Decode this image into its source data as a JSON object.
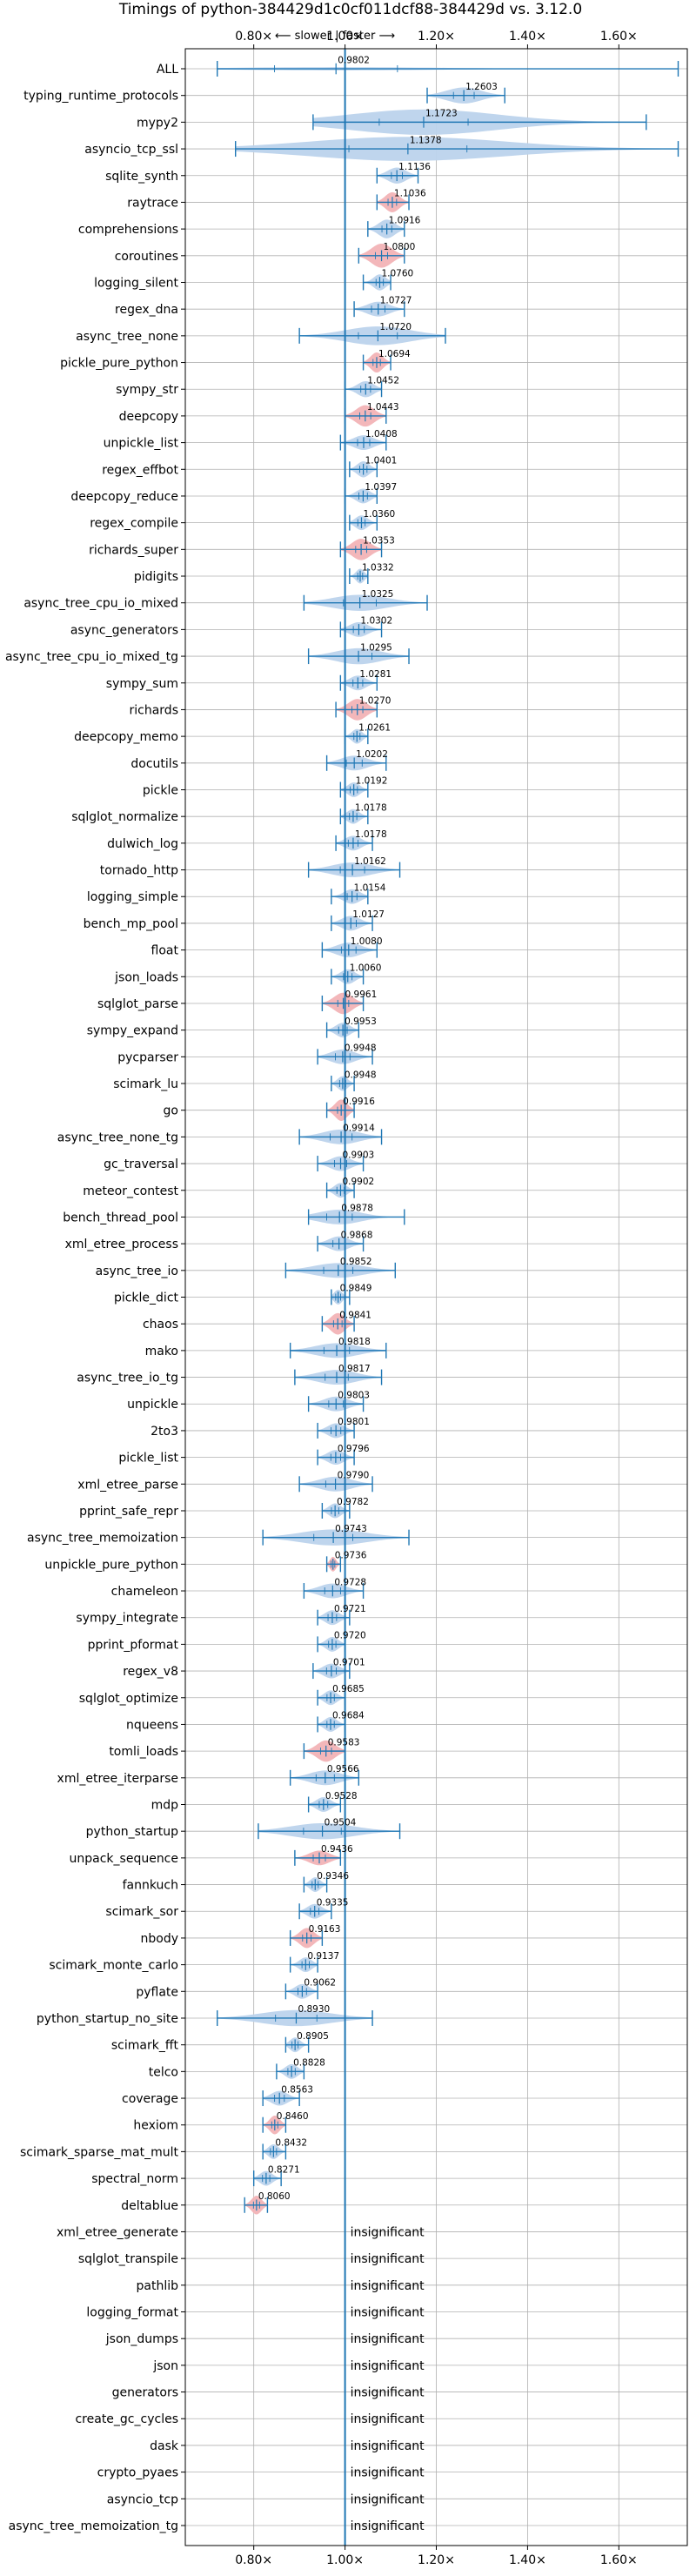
{
  "chart_data": {
    "type": "violin",
    "title": "Timings of python-384429d1c0cf011dcf88-384429d vs. 3.12.0",
    "subtitle": "⟵ slower | faster ⟶",
    "xlim": [
      0.65,
      1.75
    ],
    "xticks": [
      0.8,
      1.0,
      1.2,
      1.4,
      1.6
    ],
    "xtick_labels": [
      "0.80×",
      "1.00×",
      "1.20×",
      "1.40×",
      "1.60×"
    ],
    "reference_line": 1.0,
    "grid": true,
    "insignificant_label": "insignificant",
    "benchmarks": [
      {
        "name": "ALL",
        "value": 0.9802,
        "label": "0.9802",
        "min": 0.72,
        "max": 1.73,
        "width": 0.12,
        "color": "blue"
      },
      {
        "name": "typing_runtime_protocols",
        "value": 1.2603,
        "label": "1.2603",
        "min": 1.18,
        "max": 1.35,
        "width": 0.6,
        "color": "blue"
      },
      {
        "name": "mypy2",
        "value": 1.1723,
        "label": "1.1723",
        "min": 0.93,
        "max": 1.66,
        "width": 0.95,
        "color": "blue"
      },
      {
        "name": "asyncio_tcp_ssl",
        "value": 1.1378,
        "label": "1.1378",
        "min": 0.76,
        "max": 1.73,
        "width": 0.9,
        "color": "blue"
      },
      {
        "name": "sqlite_synth",
        "value": 1.1136,
        "label": "1.1136",
        "min": 1.07,
        "max": 1.16,
        "width": 0.6,
        "color": "blue"
      },
      {
        "name": "raytrace",
        "value": 1.1036,
        "label": "1.1036",
        "min": 1.07,
        "max": 1.14,
        "width": 0.75,
        "color": "red"
      },
      {
        "name": "comprehensions",
        "value": 1.0916,
        "label": "1.0916",
        "min": 1.05,
        "max": 1.13,
        "width": 0.7,
        "color": "blue"
      },
      {
        "name": "coroutines",
        "value": 1.08,
        "label": "1.0800",
        "min": 1.03,
        "max": 1.13,
        "width": 0.9,
        "color": "red"
      },
      {
        "name": "logging_silent",
        "value": 1.076,
        "label": "1.0760",
        "min": 1.04,
        "max": 1.1,
        "width": 0.6,
        "color": "blue"
      },
      {
        "name": "regex_dna",
        "value": 1.0727,
        "label": "1.0727",
        "min": 1.02,
        "max": 1.13,
        "width": 0.55,
        "color": "blue"
      },
      {
        "name": "async_tree_none",
        "value": 1.072,
        "label": "1.0720",
        "min": 0.9,
        "max": 1.22,
        "width": 0.7,
        "color": "blue"
      },
      {
        "name": "pickle_pure_python",
        "value": 1.0694,
        "label": "1.0694",
        "min": 1.04,
        "max": 1.1,
        "width": 0.75,
        "color": "red"
      },
      {
        "name": "sympy_str",
        "value": 1.0452,
        "label": "1.0452",
        "min": 1.0,
        "max": 1.08,
        "width": 0.6,
        "color": "blue"
      },
      {
        "name": "deepcopy",
        "value": 1.0443,
        "label": "1.0443",
        "min": 1.0,
        "max": 1.09,
        "width": 0.8,
        "color": "red"
      },
      {
        "name": "unpickle_list",
        "value": 1.0408,
        "label": "1.0408",
        "min": 0.99,
        "max": 1.09,
        "width": 0.55,
        "color": "blue"
      },
      {
        "name": "regex_effbot",
        "value": 1.0401,
        "label": "1.0401",
        "min": 1.01,
        "max": 1.07,
        "width": 0.6,
        "color": "blue"
      },
      {
        "name": "deepcopy_reduce",
        "value": 1.0397,
        "label": "1.0397",
        "min": 1.0,
        "max": 1.07,
        "width": 0.55,
        "color": "blue"
      },
      {
        "name": "regex_compile",
        "value": 1.036,
        "label": "1.0360",
        "min": 1.01,
        "max": 1.07,
        "width": 0.55,
        "color": "blue"
      },
      {
        "name": "richards_super",
        "value": 1.0353,
        "label": "1.0353",
        "min": 0.99,
        "max": 1.08,
        "width": 0.8,
        "color": "red"
      },
      {
        "name": "pidigits",
        "value": 1.0332,
        "label": "1.0332",
        "min": 1.01,
        "max": 1.05,
        "width": 0.55,
        "color": "blue"
      },
      {
        "name": "async_tree_cpu_io_mixed",
        "value": 1.0325,
        "label": "1.0325",
        "min": 0.91,
        "max": 1.18,
        "width": 0.6,
        "color": "blue"
      },
      {
        "name": "async_generators",
        "value": 1.0302,
        "label": "1.0302",
        "min": 0.99,
        "max": 1.08,
        "width": 0.55,
        "color": "blue"
      },
      {
        "name": "async_tree_cpu_io_mixed_tg",
        "value": 1.0295,
        "label": "1.0295",
        "min": 0.92,
        "max": 1.14,
        "width": 0.6,
        "color": "blue"
      },
      {
        "name": "sympy_sum",
        "value": 1.0281,
        "label": "1.0281",
        "min": 0.99,
        "max": 1.07,
        "width": 0.55,
        "color": "blue"
      },
      {
        "name": "richards",
        "value": 1.027,
        "label": "1.0270",
        "min": 0.98,
        "max": 1.07,
        "width": 0.8,
        "color": "red"
      },
      {
        "name": "deepcopy_memo",
        "value": 1.0261,
        "label": "1.0261",
        "min": 1.0,
        "max": 1.05,
        "width": 0.55,
        "color": "blue"
      },
      {
        "name": "docutils",
        "value": 1.0202,
        "label": "1.0202",
        "min": 0.96,
        "max": 1.09,
        "width": 0.55,
        "color": "blue"
      },
      {
        "name": "pickle",
        "value": 1.0192,
        "label": "1.0192",
        "min": 0.99,
        "max": 1.05,
        "width": 0.55,
        "color": "blue"
      },
      {
        "name": "sqlglot_normalize",
        "value": 1.0178,
        "label": "1.0178",
        "min": 0.99,
        "max": 1.05,
        "width": 0.55,
        "color": "blue"
      },
      {
        "name": "dulwich_log",
        "value": 1.0178,
        "label": "1.0178",
        "min": 0.98,
        "max": 1.06,
        "width": 0.55,
        "color": "blue"
      },
      {
        "name": "tornado_http",
        "value": 1.0162,
        "label": "1.0162",
        "min": 0.92,
        "max": 1.12,
        "width": 0.55,
        "color": "blue"
      },
      {
        "name": "logging_simple",
        "value": 1.0154,
        "label": "1.0154",
        "min": 0.97,
        "max": 1.05,
        "width": 0.55,
        "color": "blue"
      },
      {
        "name": "bench_mp_pool",
        "value": 1.0127,
        "label": "1.0127",
        "min": 0.97,
        "max": 1.06,
        "width": 0.55,
        "color": "blue"
      },
      {
        "name": "float",
        "value": 1.008,
        "label": "1.0080",
        "min": 0.95,
        "max": 1.07,
        "width": 0.55,
        "color": "blue"
      },
      {
        "name": "json_loads",
        "value": 1.006,
        "label": "1.0060",
        "min": 0.97,
        "max": 1.04,
        "width": 0.55,
        "color": "blue"
      },
      {
        "name": "sqlglot_parse",
        "value": 0.9961,
        "label": "0.9961",
        "min": 0.95,
        "max": 1.04,
        "width": 0.8,
        "color": "red"
      },
      {
        "name": "sympy_expand",
        "value": 0.9953,
        "label": "0.9953",
        "min": 0.96,
        "max": 1.03,
        "width": 0.55,
        "color": "blue"
      },
      {
        "name": "pycparser",
        "value": 0.9948,
        "label": "0.9948",
        "min": 0.94,
        "max": 1.06,
        "width": 0.55,
        "color": "blue"
      },
      {
        "name": "scimark_lu",
        "value": 0.9948,
        "label": "0.9948",
        "min": 0.97,
        "max": 1.02,
        "width": 0.55,
        "color": "blue"
      },
      {
        "name": "go",
        "value": 0.9916,
        "label": "0.9916",
        "min": 0.96,
        "max": 1.02,
        "width": 0.8,
        "color": "red"
      },
      {
        "name": "async_tree_none_tg",
        "value": 0.9914,
        "label": "0.9914",
        "min": 0.9,
        "max": 1.08,
        "width": 0.55,
        "color": "blue"
      },
      {
        "name": "gc_traversal",
        "value": 0.9903,
        "label": "0.9903",
        "min": 0.94,
        "max": 1.04,
        "width": 0.55,
        "color": "blue"
      },
      {
        "name": "meteor_contest",
        "value": 0.9902,
        "label": "0.9902",
        "min": 0.96,
        "max": 1.02,
        "width": 0.55,
        "color": "blue"
      },
      {
        "name": "bench_thread_pool",
        "value": 0.9878,
        "label": "0.9878",
        "min": 0.92,
        "max": 1.13,
        "width": 0.55,
        "color": "blue"
      },
      {
        "name": "xml_etree_process",
        "value": 0.9868,
        "label": "0.9868",
        "min": 0.94,
        "max": 1.04,
        "width": 0.55,
        "color": "blue"
      },
      {
        "name": "async_tree_io",
        "value": 0.9852,
        "label": "0.9852",
        "min": 0.87,
        "max": 1.11,
        "width": 0.55,
        "color": "blue"
      },
      {
        "name": "pickle_dict",
        "value": 0.9849,
        "label": "0.9849",
        "min": 0.97,
        "max": 1.01,
        "width": 0.55,
        "color": "blue"
      },
      {
        "name": "chaos",
        "value": 0.9841,
        "label": "0.9841",
        "min": 0.95,
        "max": 1.02,
        "width": 0.8,
        "color": "red"
      },
      {
        "name": "mako",
        "value": 0.9818,
        "label": "0.9818",
        "min": 0.88,
        "max": 1.09,
        "width": 0.55,
        "color": "blue"
      },
      {
        "name": "async_tree_io_tg",
        "value": 0.9817,
        "label": "0.9817",
        "min": 0.89,
        "max": 1.08,
        "width": 0.55,
        "color": "blue"
      },
      {
        "name": "unpickle",
        "value": 0.9803,
        "label": "0.9803",
        "min": 0.92,
        "max": 1.04,
        "width": 0.55,
        "color": "blue"
      },
      {
        "name": "2to3",
        "value": 0.9801,
        "label": "0.9801",
        "min": 0.94,
        "max": 1.02,
        "width": 0.55,
        "color": "blue"
      },
      {
        "name": "pickle_list",
        "value": 0.9796,
        "label": "0.9796",
        "min": 0.94,
        "max": 1.02,
        "width": 0.55,
        "color": "blue"
      },
      {
        "name": "xml_etree_parse",
        "value": 0.979,
        "label": "0.9790",
        "min": 0.9,
        "max": 1.06,
        "width": 0.55,
        "color": "blue"
      },
      {
        "name": "pprint_safe_repr",
        "value": 0.9782,
        "label": "0.9782",
        "min": 0.95,
        "max": 1.01,
        "width": 0.55,
        "color": "blue"
      },
      {
        "name": "async_tree_memoization",
        "value": 0.9743,
        "label": "0.9743",
        "min": 0.82,
        "max": 1.14,
        "width": 0.6,
        "color": "blue"
      },
      {
        "name": "unpickle_pure_python",
        "value": 0.9736,
        "label": "0.9736",
        "min": 0.96,
        "max": 0.99,
        "width": 0.55,
        "color": "red"
      },
      {
        "name": "chameleon",
        "value": 0.9728,
        "label": "0.9728",
        "min": 0.91,
        "max": 1.04,
        "width": 0.55,
        "color": "blue"
      },
      {
        "name": "sympy_integrate",
        "value": 0.9721,
        "label": "0.9721",
        "min": 0.94,
        "max": 1.01,
        "width": 0.55,
        "color": "blue"
      },
      {
        "name": "pprint_pformat",
        "value": 0.972,
        "label": "0.9720",
        "min": 0.94,
        "max": 1.0,
        "width": 0.55,
        "color": "blue"
      },
      {
        "name": "regex_v8",
        "value": 0.9701,
        "label": "0.9701",
        "min": 0.93,
        "max": 1.01,
        "width": 0.55,
        "color": "blue"
      },
      {
        "name": "sqlglot_optimize",
        "value": 0.9685,
        "label": "0.9685",
        "min": 0.94,
        "max": 1.0,
        "width": 0.55,
        "color": "blue"
      },
      {
        "name": "nqueens",
        "value": 0.9684,
        "label": "0.9684",
        "min": 0.94,
        "max": 1.0,
        "width": 0.55,
        "color": "blue"
      },
      {
        "name": "tomli_loads",
        "value": 0.9583,
        "label": "0.9583",
        "min": 0.91,
        "max": 1.0,
        "width": 0.8,
        "color": "red"
      },
      {
        "name": "xml_etree_iterparse",
        "value": 0.9566,
        "label": "0.9566",
        "min": 0.88,
        "max": 1.03,
        "width": 0.55,
        "color": "blue"
      },
      {
        "name": "mdp",
        "value": 0.9528,
        "label": "0.9528",
        "min": 0.92,
        "max": 0.99,
        "width": 0.55,
        "color": "blue"
      },
      {
        "name": "python_startup",
        "value": 0.9504,
        "label": "0.9504",
        "min": 0.81,
        "max": 1.12,
        "width": 0.6,
        "color": "blue"
      },
      {
        "name": "unpack_sequence",
        "value": 0.9436,
        "label": "0.9436",
        "min": 0.89,
        "max": 0.99,
        "width": 0.55,
        "color": "red"
      },
      {
        "name": "fannkuch",
        "value": 0.9346,
        "label": "0.9346",
        "min": 0.91,
        "max": 0.96,
        "width": 0.55,
        "color": "blue"
      },
      {
        "name": "scimark_sor",
        "value": 0.9335,
        "label": "0.9335",
        "min": 0.9,
        "max": 0.97,
        "width": 0.55,
        "color": "blue"
      },
      {
        "name": "nbody",
        "value": 0.9163,
        "label": "0.9163",
        "min": 0.88,
        "max": 0.95,
        "width": 0.75,
        "color": "red"
      },
      {
        "name": "scimark_monte_carlo",
        "value": 0.9137,
        "label": "0.9137",
        "min": 0.88,
        "max": 0.94,
        "width": 0.55,
        "color": "blue"
      },
      {
        "name": "pyflate",
        "value": 0.9062,
        "label": "0.9062",
        "min": 0.87,
        "max": 0.94,
        "width": 0.55,
        "color": "blue"
      },
      {
        "name": "python_startup_no_site",
        "value": 0.893,
        "label": "0.8930",
        "min": 0.72,
        "max": 1.06,
        "width": 0.6,
        "color": "blue"
      },
      {
        "name": "scimark_fft",
        "value": 0.8905,
        "label": "0.8905",
        "min": 0.87,
        "max": 0.92,
        "width": 0.55,
        "color": "blue"
      },
      {
        "name": "telco",
        "value": 0.8828,
        "label": "0.8828",
        "min": 0.85,
        "max": 0.91,
        "width": 0.55,
        "color": "blue"
      },
      {
        "name": "coverage",
        "value": 0.8563,
        "label": "0.8563",
        "min": 0.82,
        "max": 0.9,
        "width": 0.55,
        "color": "blue"
      },
      {
        "name": "hexiom",
        "value": 0.846,
        "label": "0.8460",
        "min": 0.82,
        "max": 0.87,
        "width": 0.7,
        "color": "red"
      },
      {
        "name": "scimark_sparse_mat_mult",
        "value": 0.8432,
        "label": "0.8432",
        "min": 0.82,
        "max": 0.87,
        "width": 0.55,
        "color": "blue"
      },
      {
        "name": "spectral_norm",
        "value": 0.8271,
        "label": "0.8271",
        "min": 0.8,
        "max": 0.86,
        "width": 0.55,
        "color": "blue"
      },
      {
        "name": "deltablue",
        "value": 0.806,
        "label": "0.8060",
        "min": 0.78,
        "max": 0.83,
        "width": 0.7,
        "color": "red"
      },
      {
        "name": "xml_etree_generate",
        "value": null
      },
      {
        "name": "sqlglot_transpile",
        "value": null
      },
      {
        "name": "pathlib",
        "value": null
      },
      {
        "name": "logging_format",
        "value": null
      },
      {
        "name": "json_dumps",
        "value": null
      },
      {
        "name": "json",
        "value": null
      },
      {
        "name": "generators",
        "value": null
      },
      {
        "name": "create_gc_cycles",
        "value": null
      },
      {
        "name": "dask",
        "value": null
      },
      {
        "name": "crypto_pyaes",
        "value": null
      },
      {
        "name": "asyncio_tcp",
        "value": null
      },
      {
        "name": "async_tree_memoization_tg",
        "value": null
      }
    ]
  },
  "colors": {
    "blue_fill": "#bcd3ec",
    "blue_line": "#1f77b4",
    "red_fill": "#f2b3b6",
    "grid": "#b0b0b0"
  }
}
